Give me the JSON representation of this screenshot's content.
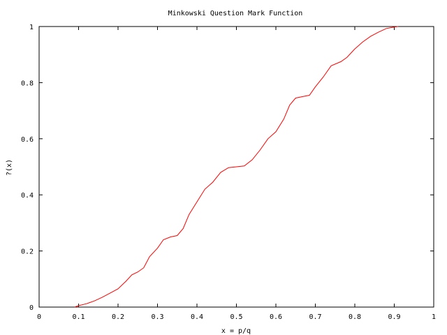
{
  "chart_data": {
    "type": "line",
    "title": "Minkowski Question Mark Function",
    "xlabel": "x = p/q",
    "ylabel": "?(x)",
    "xlim": [
      0,
      1
    ],
    "ylim": [
      0,
      1
    ],
    "grid": false,
    "legend": "none",
    "x_ticks": [
      "0",
      "0.1",
      "0.2",
      "0.3",
      "0.4",
      "0.5",
      "0.6",
      "0.7",
      "0.8",
      "0.9",
      "1"
    ],
    "y_ticks": [
      "0",
      "0.2",
      "0.4",
      "0.6",
      "0.8",
      "1"
    ],
    "series": [
      {
        "color": "#ff0000",
        "x": [
          0.09,
          0.1,
          0.12,
          0.14,
          0.16,
          0.18,
          0.2,
          0.22,
          0.235,
          0.25,
          0.265,
          0.28,
          0.3,
          0.315,
          0.333,
          0.35,
          0.365,
          0.38,
          0.4,
          0.42,
          0.44,
          0.46,
          0.48,
          0.5,
          0.52,
          0.54,
          0.56,
          0.58,
          0.6,
          0.62,
          0.635,
          0.65,
          0.667,
          0.685,
          0.7,
          0.72,
          0.74,
          0.765,
          0.78,
          0.8,
          0.82,
          0.84,
          0.86,
          0.88,
          0.9,
          0.91
        ],
        "y": [
          0.0,
          0.005,
          0.012,
          0.022,
          0.035,
          0.05,
          0.065,
          0.092,
          0.115,
          0.125,
          0.14,
          0.18,
          0.21,
          0.24,
          0.25,
          0.255,
          0.28,
          0.33,
          0.375,
          0.42,
          0.445,
          0.48,
          0.497,
          0.5,
          0.503,
          0.525,
          0.56,
          0.6,
          0.625,
          0.67,
          0.72,
          0.745,
          0.75,
          0.755,
          0.785,
          0.82,
          0.86,
          0.875,
          0.89,
          0.92,
          0.945,
          0.965,
          0.98,
          0.993,
          0.998,
          1.0
        ]
      }
    ]
  }
}
